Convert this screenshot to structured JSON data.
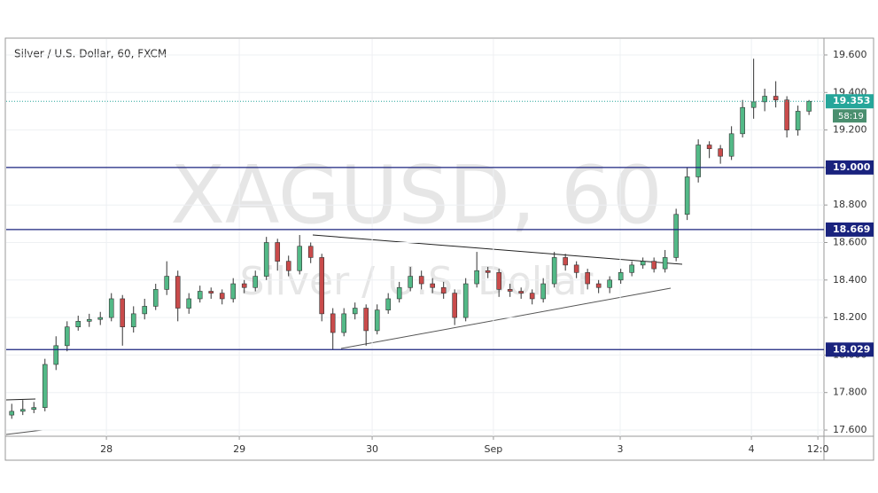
{
  "chart_data": {
    "type": "candlestick",
    "title": "Silver / U.S. Dollar, 60, FXCM",
    "watermark": "XAGUSD, 60",
    "watermark_subtitle": "Silver / U.S. Dollar",
    "x": [
      1,
      3,
      5,
      7,
      9,
      11,
      13,
      15,
      17,
      19,
      21,
      23,
      25,
      27,
      29,
      31,
      33,
      35,
      37,
      39,
      41,
      43,
      45,
      47,
      49,
      51,
      53,
      55,
      57,
      59,
      61,
      63,
      65,
      67,
      69,
      71,
      73,
      75,
      77,
      79,
      81,
      83,
      85,
      87,
      89,
      91,
      93,
      95,
      97,
      99,
      101,
      103,
      105,
      107,
      109,
      111,
      113,
      115,
      117,
      119,
      121,
      123,
      125,
      127,
      129,
      131,
      133,
      135,
      137,
      139,
      141,
      143,
      145
    ],
    "open": [
      17.68,
      17.7,
      17.71,
      17.72,
      17.95,
      18.05,
      18.15,
      18.18,
      18.19,
      18.2,
      18.3,
      18.15,
      18.22,
      18.26,
      18.35,
      18.42,
      18.25,
      18.3,
      18.34,
      18.33,
      18.3,
      18.38,
      18.36,
      18.42,
      18.6,
      18.5,
      18.45,
      18.58,
      18.52,
      18.22,
      18.12,
      18.22,
      18.25,
      18.13,
      18.24,
      18.3,
      18.36,
      18.42,
      18.38,
      18.36,
      18.33,
      18.2,
      18.38,
      18.45,
      18.44,
      18.35,
      18.34,
      18.33,
      18.3,
      18.38,
      18.52,
      18.48,
      18.44,
      18.38,
      18.36,
      18.4,
      18.44,
      18.48,
      18.5,
      18.46,
      18.52,
      18.75,
      18.95,
      19.12,
      19.1,
      19.06,
      19.18,
      19.32,
      19.35,
      19.38,
      19.36,
      19.2,
      19.3
    ],
    "high": [
      17.74,
      17.76,
      17.75,
      17.98,
      18.1,
      18.18,
      18.21,
      18.22,
      18.23,
      18.33,
      18.32,
      18.26,
      18.3,
      18.38,
      18.5,
      18.45,
      18.33,
      18.37,
      18.36,
      18.35,
      18.41,
      18.4,
      18.45,
      18.63,
      18.62,
      18.53,
      18.64,
      18.6,
      18.54,
      18.25,
      18.25,
      18.28,
      18.27,
      18.27,
      18.33,
      18.39,
      18.47,
      18.45,
      18.41,
      18.39,
      18.35,
      18.41,
      18.55,
      18.47,
      18.46,
      18.38,
      18.36,
      18.35,
      18.41,
      18.55,
      18.54,
      18.5,
      18.46,
      18.4,
      18.42,
      18.46,
      18.5,
      18.52,
      18.52,
      18.56,
      18.78,
      19.0,
      19.15,
      19.14,
      19.12,
      19.22,
      19.36,
      19.58,
      19.42,
      19.46,
      19.38,
      19.33,
      19.36
    ],
    "low": [
      17.66,
      17.68,
      17.69,
      17.7,
      17.92,
      18.02,
      18.13,
      18.15,
      18.16,
      18.18,
      18.05,
      18.12,
      18.19,
      18.24,
      18.32,
      18.18,
      18.22,
      18.28,
      18.3,
      18.27,
      18.28,
      18.33,
      18.34,
      18.4,
      18.45,
      18.42,
      18.43,
      18.49,
      18.18,
      18.03,
      18.1,
      18.19,
      18.05,
      18.11,
      18.22,
      18.28,
      18.34,
      18.35,
      18.33,
      18.3,
      18.16,
      18.18,
      18.36,
      18.41,
      18.31,
      18.31,
      18.3,
      18.27,
      18.28,
      18.36,
      18.45,
      18.41,
      18.35,
      18.33,
      18.33,
      18.38,
      18.42,
      18.46,
      18.44,
      18.44,
      18.5,
      18.72,
      18.92,
      19.05,
      19.02,
      19.04,
      19.16,
      19.26,
      19.3,
      19.32,
      19.16,
      19.17,
      19.28
    ],
    "close": [
      17.7,
      17.71,
      17.72,
      17.95,
      18.05,
      18.15,
      18.18,
      18.19,
      18.2,
      18.3,
      18.15,
      18.22,
      18.26,
      18.35,
      18.42,
      18.25,
      18.3,
      18.34,
      18.33,
      18.3,
      18.38,
      18.36,
      18.42,
      18.6,
      18.5,
      18.45,
      18.58,
      18.52,
      18.22,
      18.12,
      18.22,
      18.25,
      18.13,
      18.24,
      18.3,
      18.36,
      18.42,
      18.38,
      18.36,
      18.33,
      18.2,
      18.38,
      18.45,
      18.44,
      18.35,
      18.34,
      18.33,
      18.3,
      18.38,
      18.52,
      18.48,
      18.44,
      18.38,
      18.36,
      18.4,
      18.44,
      18.48,
      18.5,
      18.46,
      18.52,
      18.75,
      18.95,
      19.12,
      19.1,
      19.06,
      19.18,
      19.32,
      19.35,
      19.38,
      19.36,
      19.2,
      19.3,
      19.353
    ],
    "up_color": "#53b987",
    "down_color": "#c94b4b",
    "xlim": [
      0,
      147.7
    ],
    "xticks": [
      {
        "value": 18.1,
        "label": "28"
      },
      {
        "value": 42.1,
        "label": "29"
      },
      {
        "value": 66.1,
        "label": "30"
      },
      {
        "value": 88,
        "label": "Sep"
      },
      {
        "value": 110.9,
        "label": "3"
      },
      {
        "value": 134.6,
        "label": "4"
      },
      {
        "value": 146.6,
        "label": "12:0"
      }
    ],
    "ylim": [
      17.567,
      19.685
    ],
    "yticks": [
      {
        "value": 17.6,
        "label": "17.600"
      },
      {
        "value": 17.8,
        "label": "17.800"
      },
      {
        "value": 18.0,
        "label": "18.000"
      },
      {
        "value": 18.2,
        "label": "18.200"
      },
      {
        "value": 18.4,
        "label": "18.400"
      },
      {
        "value": 18.6,
        "label": "18.600"
      },
      {
        "value": 18.8,
        "label": "18.800"
      },
      {
        "value": 19.0,
        "label": "19.000"
      },
      {
        "value": 19.2,
        "label": "19.200"
      },
      {
        "value": 19.4,
        "label": "19.400"
      },
      {
        "value": 19.6,
        "label": "19.600"
      }
    ],
    "levels": [
      {
        "value": 19.0,
        "label": "19.000"
      },
      {
        "value": 18.669,
        "label": "18.669"
      },
      {
        "value": 18.029,
        "label": "18.029"
      }
    ],
    "level_color": "#1a237e",
    "last_price": 19.353,
    "price_color": "#26a69a",
    "countdown": "58:19"
  }
}
